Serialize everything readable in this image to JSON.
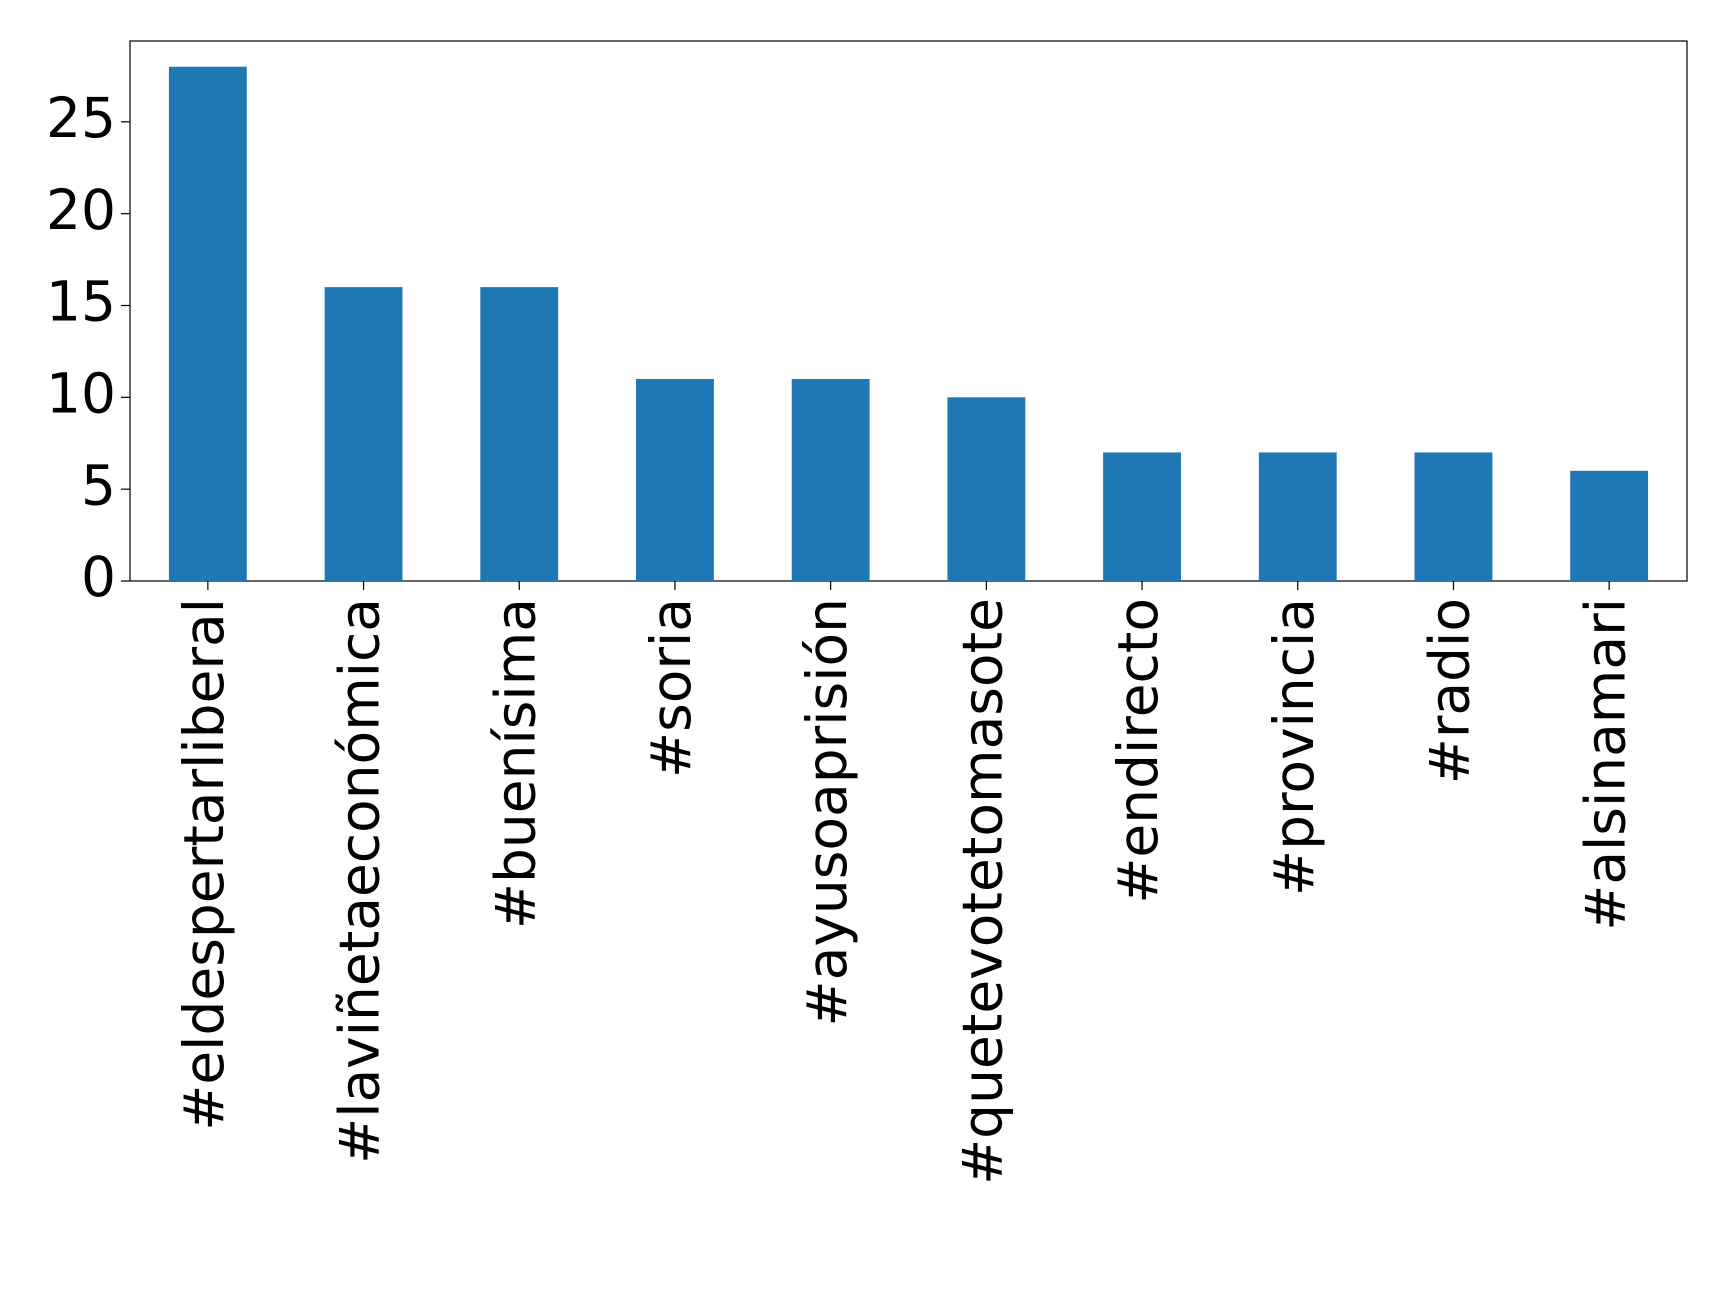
{
  "chart_data": {
    "type": "bar",
    "categories": [
      "#eldespertarliberal",
      "#laviñetaeconómica",
      "#buenísima",
      "#soria",
      "#ayusoaprisión",
      "#quetevotetomasote",
      "#endirecto",
      "#provincia",
      "#radio",
      "#alsinamari"
    ],
    "values": [
      28,
      16,
      16,
      11,
      11,
      10,
      7,
      7,
      7,
      6
    ],
    "color": "#1f77b4",
    "ylim": [
      0,
      29.4
    ],
    "yticks": [
      0,
      5,
      10,
      15,
      20,
      25
    ],
    "grid": false
  }
}
